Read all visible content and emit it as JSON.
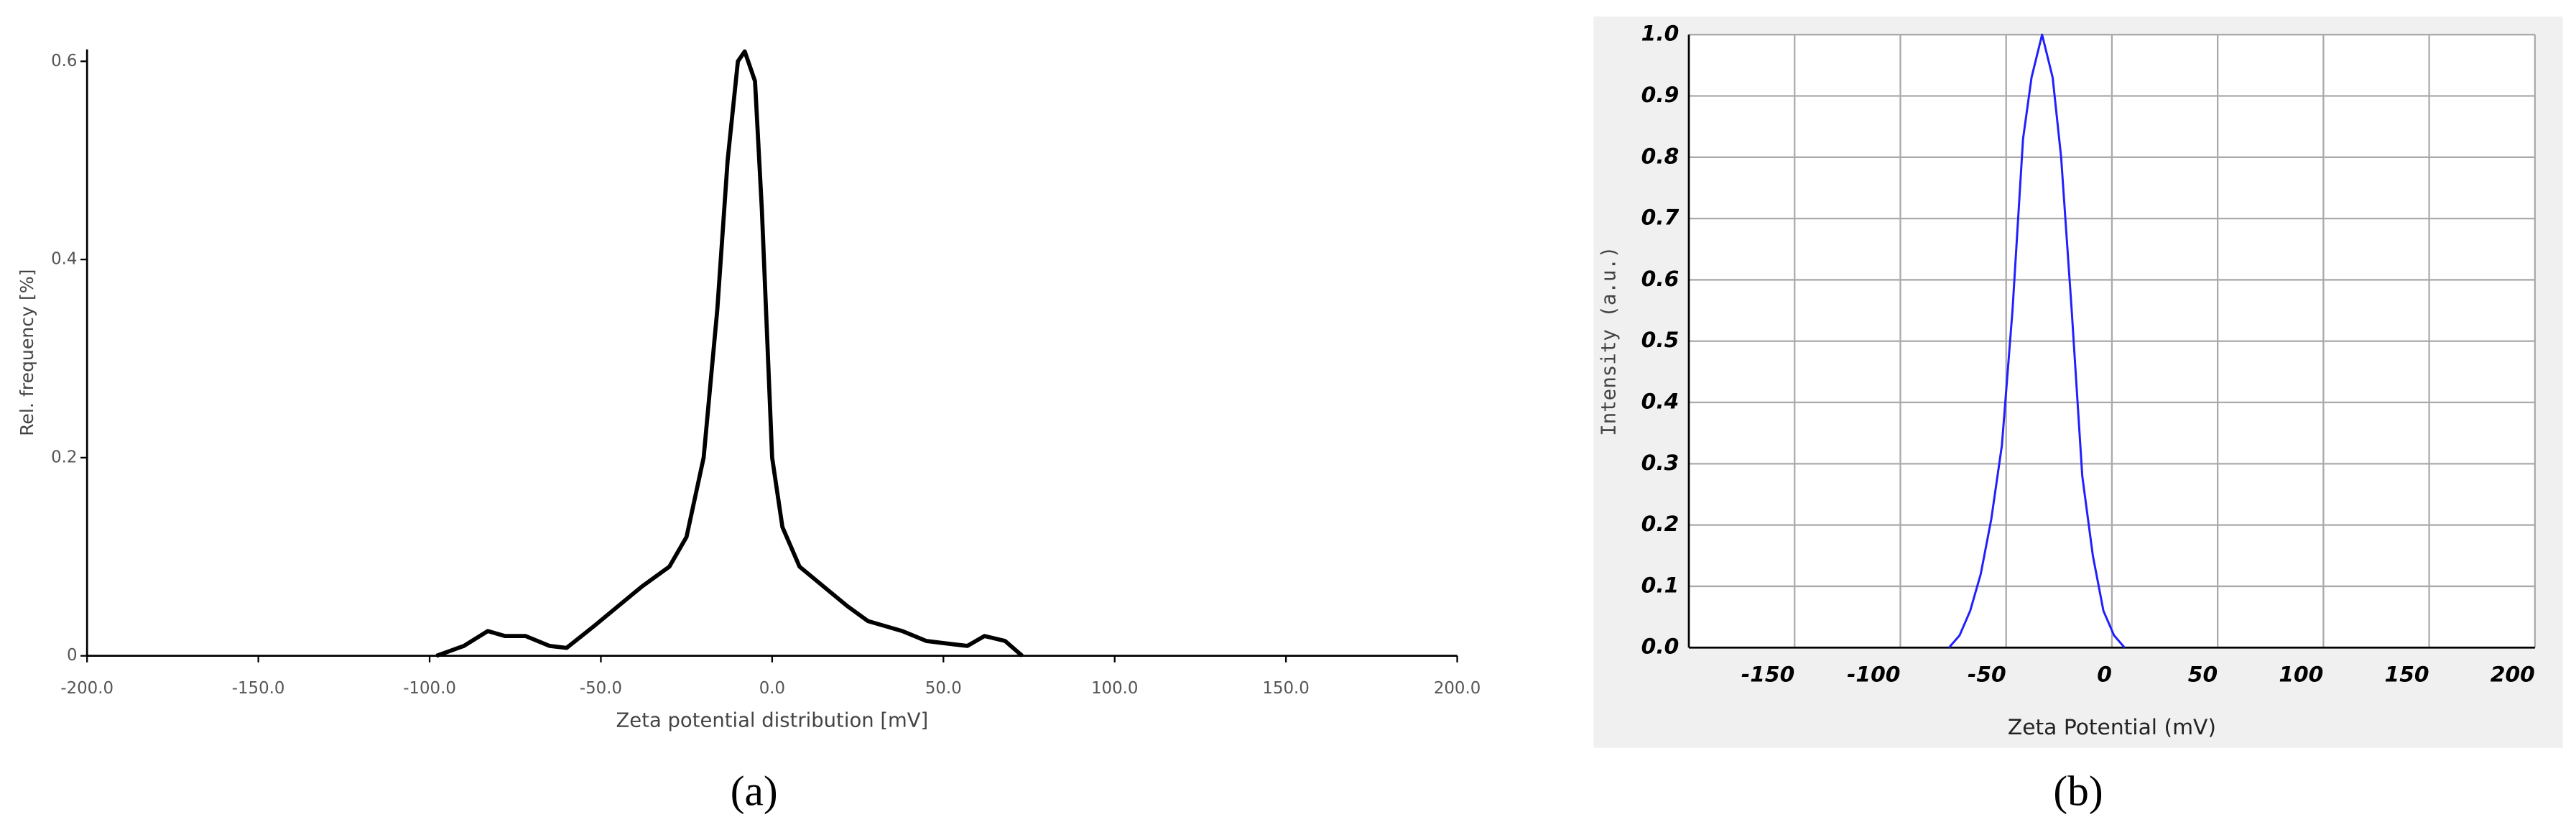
{
  "chart_data": [
    {
      "type": "line",
      "panel_label": "(a)",
      "x_label": "Zeta potential distribution [mV]",
      "y_label": "Rel. frequency [%]",
      "x": [
        -98,
        -90,
        -83,
        -78,
        -72,
        -65,
        -60,
        -52,
        -45,
        -38,
        -30,
        -25,
        -20,
        -16,
        -13,
        -10,
        -8,
        -5,
        -3,
        0,
        3,
        8,
        15,
        22,
        28,
        33,
        38,
        45,
        52,
        57,
        62,
        68,
        73
      ],
      "values": [
        0,
        0.01,
        0.025,
        0.02,
        0.02,
        0.01,
        0.008,
        0.03,
        0.05,
        0.07,
        0.09,
        0.12,
        0.2,
        0.35,
        0.5,
        0.6,
        0.61,
        0.58,
        0.45,
        0.2,
        0.13,
        0.09,
        0.07,
        0.05,
        0.035,
        0.03,
        0.025,
        0.015,
        0.012,
        0.01,
        0.02,
        0.015,
        0
      ],
      "color": "#000000",
      "xlim": [
        -200,
        200
      ],
      "xticks": [
        {
          "value": -200,
          "label": "-200.0"
        },
        {
          "value": -150,
          "label": "-150.0"
        },
        {
          "value": -100,
          "label": "-100.0"
        },
        {
          "value": -50,
          "label": "-50.0"
        },
        {
          "value": 0,
          "label": "0.0"
        },
        {
          "value": 50,
          "label": "50.0"
        },
        {
          "value": 100,
          "label": "100.0"
        },
        {
          "value": 150,
          "label": "150.0"
        },
        {
          "value": 200,
          "label": "200.0"
        }
      ],
      "ylim": [
        0,
        0.612
      ],
      "yticks": [
        0,
        0.2,
        0.4,
        0.6
      ],
      "grid": false
    },
    {
      "type": "line",
      "panel_label": "(b)",
      "x_label": "Zeta Potential (mV)",
      "y_label": "Intensity (a.u.)",
      "x": [
        -77,
        -72,
        -67,
        -62,
        -57,
        -52,
        -47,
        -42,
        -38,
        -33,
        -28,
        -24,
        -19,
        -14,
        -9,
        -4,
        1,
        6
      ],
      "values": [
        0,
        0.02,
        0.06,
        0.12,
        0.21,
        0.33,
        0.55,
        0.83,
        0.93,
        1.0,
        0.93,
        0.8,
        0.55,
        0.28,
        0.15,
        0.06,
        0.02,
        0
      ],
      "color": "#1f1fff",
      "xlim": [
        -200,
        200
      ],
      "xticks": [
        -150,
        -100,
        -50,
        0,
        50,
        100,
        150,
        200
      ],
      "ylim": [
        0,
        1
      ],
      "yticks": [
        {
          "value": 0,
          "label": "0.0"
        },
        {
          "value": 0.1,
          "label": "0.1"
        },
        {
          "value": 0.2,
          "label": "0.2"
        },
        {
          "value": 0.3,
          "label": "0.3"
        },
        {
          "value": 0.4,
          "label": "0.4"
        },
        {
          "value": 0.5,
          "label": "0.5"
        },
        {
          "value": 0.6,
          "label": "0.6"
        },
        {
          "value": 0.7,
          "label": "0.7"
        },
        {
          "value": 0.8,
          "label": "0.8"
        },
        {
          "value": 0.9,
          "label": "0.9"
        },
        {
          "value": 1,
          "label": "1.0"
        }
      ],
      "grid": true
    }
  ]
}
